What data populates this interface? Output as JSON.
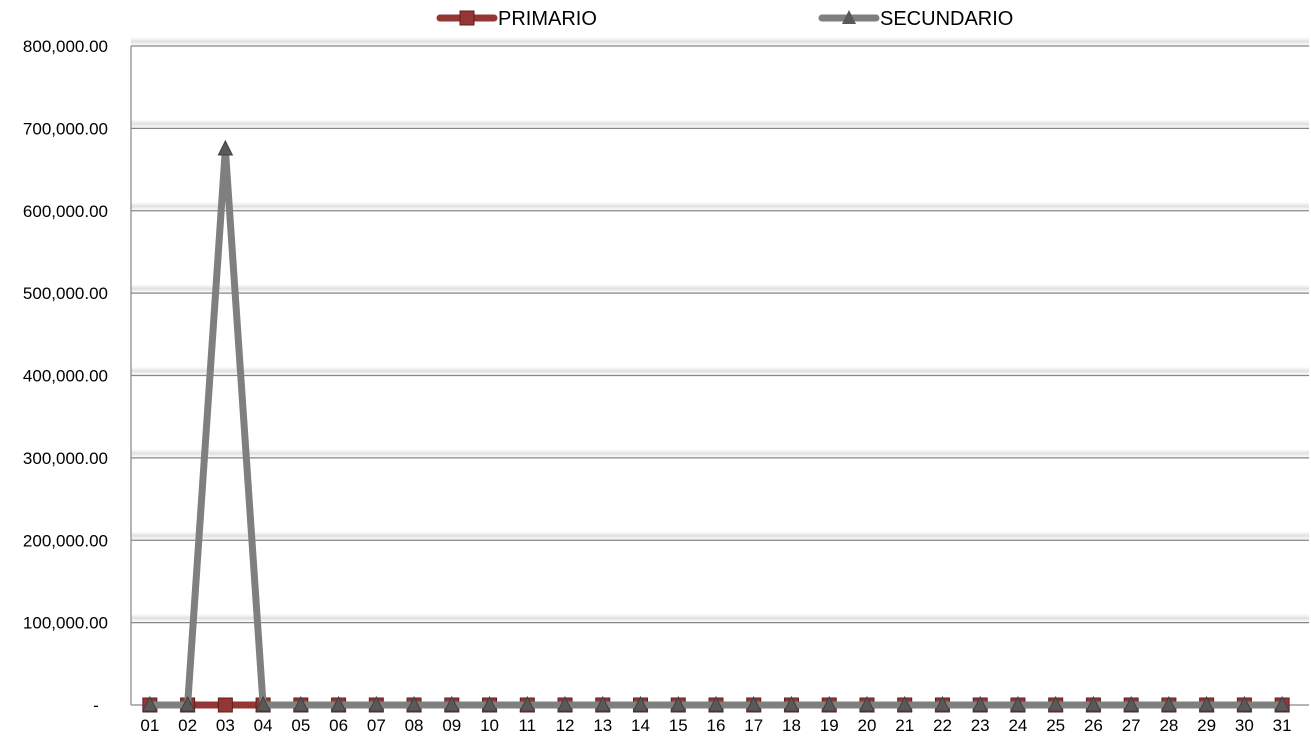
{
  "chart_data": {
    "type": "line",
    "categories": [
      "01",
      "02",
      "03",
      "04",
      "05",
      "06",
      "07",
      "08",
      "09",
      "10",
      "11",
      "12",
      "13",
      "14",
      "15",
      "16",
      "17",
      "18",
      "19",
      "20",
      "21",
      "22",
      "23",
      "24",
      "25",
      "26",
      "27",
      "28",
      "29",
      "30",
      "31"
    ],
    "series": [
      {
        "name": "PRIMARIO",
        "color": "#943634",
        "marker": "square",
        "values": [
          0,
          0,
          0,
          0,
          0,
          0,
          0,
          0,
          0,
          0,
          0,
          0,
          0,
          0,
          0,
          0,
          0,
          0,
          0,
          0,
          0,
          0,
          0,
          0,
          0,
          0,
          0,
          0,
          0,
          0,
          0
        ]
      },
      {
        "name": "SECUNDARIO",
        "color": "#7f7f7f",
        "marker": "triangle",
        "values": [
          0,
          0,
          675000,
          0,
          0,
          0,
          0,
          0,
          0,
          0,
          0,
          0,
          0,
          0,
          0,
          0,
          0,
          0,
          0,
          0,
          0,
          0,
          0,
          0,
          0,
          0,
          0,
          0,
          0,
          0,
          0
        ]
      }
    ],
    "y_tick_labels": [
      "-",
      "100,000.00",
      "200,000.00",
      "300,000.00",
      "400,000.00",
      "500,000.00",
      "600,000.00",
      "700,000.00",
      "800,000.00"
    ],
    "ylim": [
      0,
      800000
    ],
    "grid": true,
    "legend_position": "top"
  }
}
